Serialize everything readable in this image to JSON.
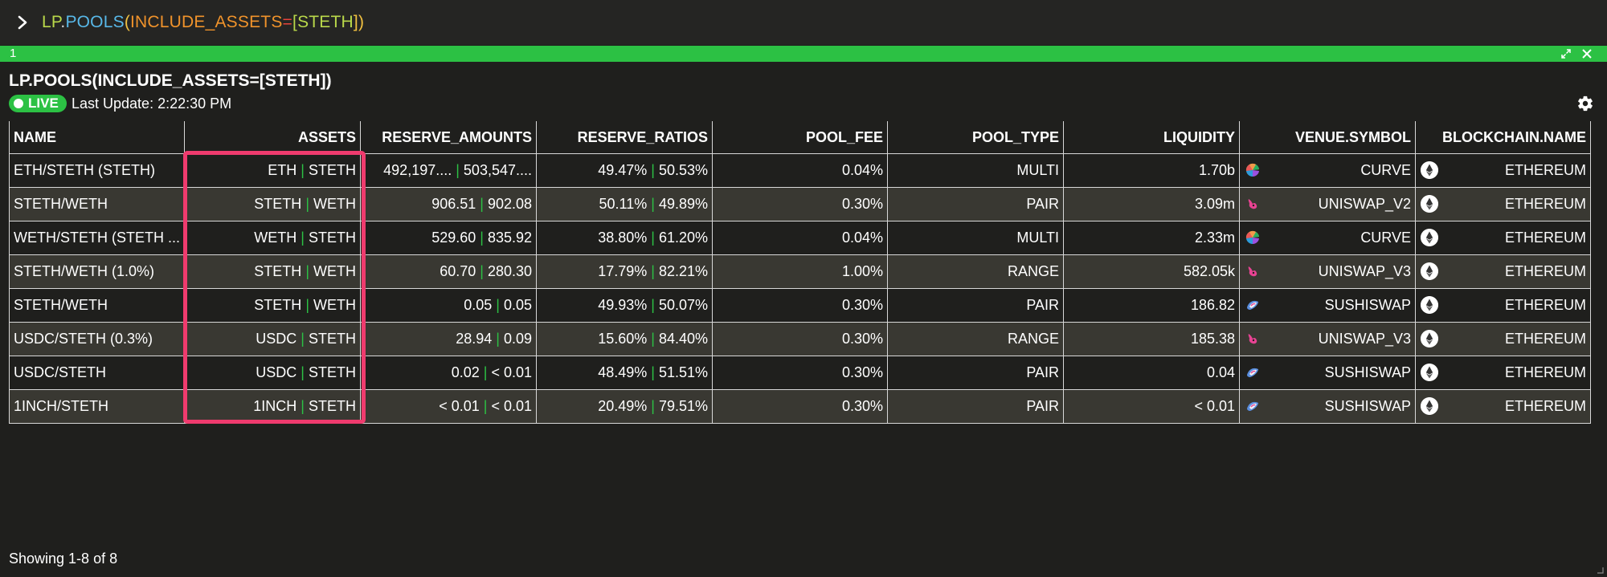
{
  "command": {
    "prefix": "LP",
    "dot": ".",
    "func": "POOLS",
    "open_paren": "(",
    "arg_name": "INCLUDE_ASSETS",
    "equals": "=",
    "open_bracket": "[",
    "arg_value": "STETH",
    "close": "])"
  },
  "panel": {
    "number": "1",
    "title": "LP.POOLS(INCLUDE_ASSETS=[STETH])",
    "live_label": "LIVE",
    "last_update": "Last Update: 2:22:30 PM",
    "footer": "Showing 1-8 of 8"
  },
  "colors": {
    "accent_green": "#2cc144",
    "highlight_pink": "#ef3b6e",
    "cmd_prefix": "#b9d84a",
    "cmd_func": "#58b8e8",
    "cmd_arg": "#f0932b",
    "cmd_equals": "#e8433b"
  },
  "table": {
    "headers": [
      "NAME",
      "ASSETS",
      "RESERVE_AMOUNTS",
      "RESERVE_RATIOS",
      "POOL_FEE",
      "POOL_TYPE",
      "LIQUIDITY",
      "VENUE.SYMBOL",
      "BLOCKCHAIN.NAME"
    ],
    "rows": [
      {
        "name": "ETH/STETH (STETH)",
        "asset_a": "ETH",
        "asset_b": "STETH",
        "amount_a": "492,197....",
        "amount_b": "503,547....",
        "ratio_a": "49.47%",
        "ratio_b": "50.53%",
        "fee": "0.04%",
        "type": "MULTI",
        "liquidity": "1.70b",
        "venue": "CURVE",
        "venue_icon": "curve-icon",
        "chain": "ETHEREUM"
      },
      {
        "name": "STETH/WETH",
        "asset_a": "STETH",
        "asset_b": "WETH",
        "amount_a": "906.51",
        "amount_b": "902.08",
        "ratio_a": "50.11%",
        "ratio_b": "49.89%",
        "fee": "0.30%",
        "type": "PAIR",
        "liquidity": "3.09m",
        "venue": "UNISWAP_V2",
        "venue_icon": "uniswap-icon",
        "chain": "ETHEREUM"
      },
      {
        "name": "WETH/STETH (STETH ...",
        "asset_a": "WETH",
        "asset_b": "STETH",
        "amount_a": "529.60",
        "amount_b": "835.92",
        "ratio_a": "38.80%",
        "ratio_b": "61.20%",
        "fee": "0.04%",
        "type": "MULTI",
        "liquidity": "2.33m",
        "venue": "CURVE",
        "venue_icon": "curve-icon",
        "chain": "ETHEREUM"
      },
      {
        "name": "STETH/WETH (1.0%)",
        "asset_a": "STETH",
        "asset_b": "WETH",
        "amount_a": "60.70",
        "amount_b": "280.30",
        "ratio_a": "17.79%",
        "ratio_b": "82.21%",
        "fee": "1.00%",
        "type": "RANGE",
        "liquidity": "582.05k",
        "venue": "UNISWAP_V3",
        "venue_icon": "uniswap-icon",
        "chain": "ETHEREUM"
      },
      {
        "name": "STETH/WETH",
        "asset_a": "STETH",
        "asset_b": "WETH",
        "amount_a": "0.05",
        "amount_b": "0.05",
        "ratio_a": "49.93%",
        "ratio_b": "50.07%",
        "fee": "0.30%",
        "type": "PAIR",
        "liquidity": "186.82",
        "venue": "SUSHISWAP",
        "venue_icon": "sushiswap-icon",
        "chain": "ETHEREUM"
      },
      {
        "name": "USDC/STETH (0.3%)",
        "asset_a": "USDC",
        "asset_b": "STETH",
        "amount_a": "28.94",
        "amount_b": "0.09",
        "ratio_a": "15.60%",
        "ratio_b": "84.40%",
        "fee": "0.30%",
        "type": "RANGE",
        "liquidity": "185.38",
        "venue": "UNISWAP_V3",
        "venue_icon": "uniswap-icon",
        "chain": "ETHEREUM"
      },
      {
        "name": "USDC/STETH",
        "asset_a": "USDC",
        "asset_b": "STETH",
        "amount_a": "0.02",
        "amount_b": "< 0.01",
        "ratio_a": "48.49%",
        "ratio_b": "51.51%",
        "fee": "0.30%",
        "type": "PAIR",
        "liquidity": "0.04",
        "venue": "SUSHISWAP",
        "venue_icon": "sushiswap-icon",
        "chain": "ETHEREUM"
      },
      {
        "name": "1INCH/STETH",
        "asset_a": "1INCH",
        "asset_b": "STETH",
        "amount_a": "< 0.01",
        "amount_b": "< 0.01",
        "ratio_a": "20.49%",
        "ratio_b": "79.51%",
        "fee": "0.30%",
        "type": "PAIR",
        "liquidity": "< 0.01",
        "venue": "SUSHISWAP",
        "venue_icon": "sushiswap-icon",
        "chain": "ETHEREUM"
      }
    ]
  }
}
